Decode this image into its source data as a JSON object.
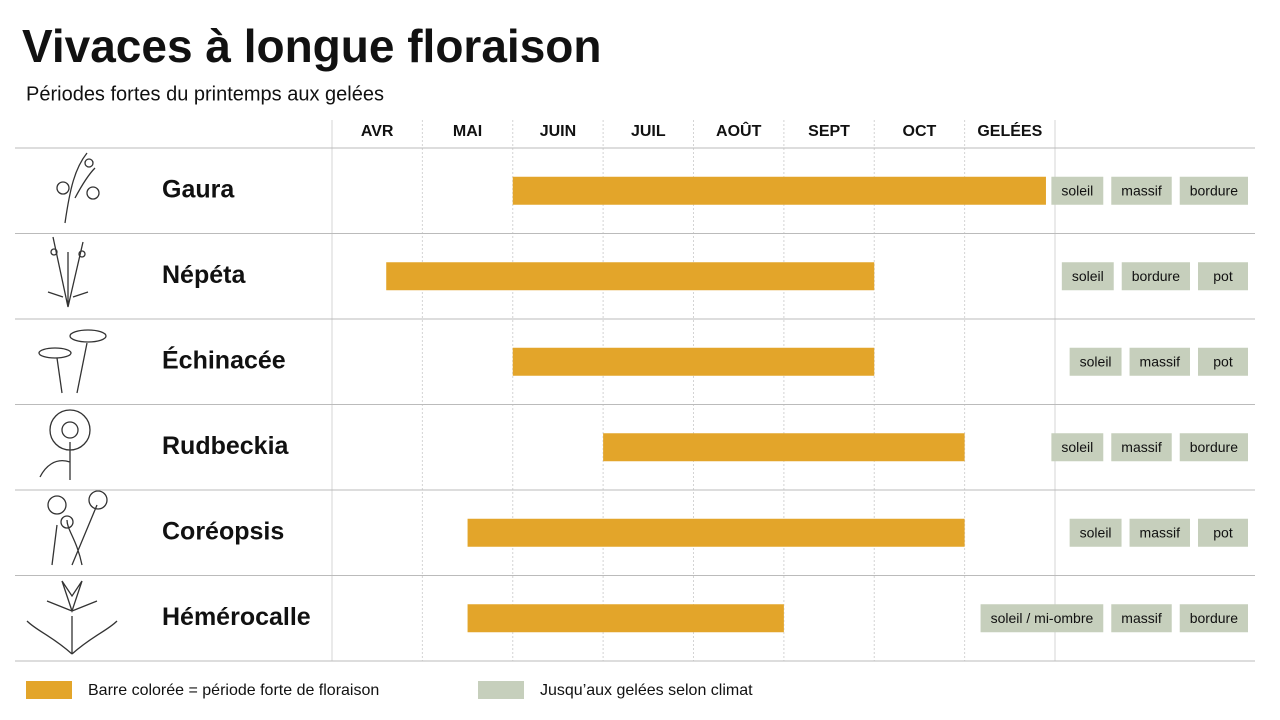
{
  "chart_data": {
    "type": "gantt",
    "title": "Vivaces à longue floraison",
    "subtitle": "Périodes fortes du printemps aux gelées",
    "categories": [
      "AVR",
      "MAI",
      "JUIN",
      "JUIL",
      "AOÛT",
      "SEPT",
      "OCT",
      "GELÉES"
    ],
    "xlim": [
      0,
      8
    ],
    "rows": [
      {
        "name": "Gaura",
        "start": 2,
        "end": 7.9,
        "tags": [
          "soleil",
          "massif",
          "bordure"
        ]
      },
      {
        "name": "Népéta",
        "start": 0.6,
        "end": 6,
        "tags": [
          "soleil",
          "bordure",
          "pot"
        ]
      },
      {
        "name": "Échinacée",
        "start": 2,
        "end": 6,
        "tags": [
          "soleil",
          "massif",
          "pot"
        ]
      },
      {
        "name": "Rudbeckia",
        "start": 3,
        "end": 7,
        "tags": [
          "soleil",
          "massif",
          "bordure"
        ]
      },
      {
        "name": "Coréopsis",
        "start": 1.5,
        "end": 7,
        "tags": [
          "soleil",
          "massif",
          "pot"
        ]
      },
      {
        "name": "Hémérocalle",
        "start": 1.5,
        "end": 5,
        "tags": [
          "soleil / mi-ombre",
          "massif",
          "bordure"
        ]
      }
    ],
    "bar_color": "#e3a52a",
    "tag_color": "#c6cfbc",
    "legend": [
      {
        "label": "Barre colorée = période forte de floraison",
        "color": "#e3a52a"
      },
      {
        "label": "Jusqu’aux gelées selon climat",
        "color": "#c6cfbc"
      }
    ]
  }
}
